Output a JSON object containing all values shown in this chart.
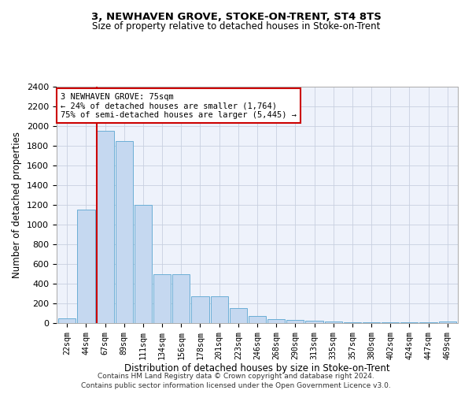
{
  "title": "3, NEWHAVEN GROVE, STOKE-ON-TRENT, ST4 8TS",
  "subtitle": "Size of property relative to detached houses in Stoke-on-Trent",
  "xlabel": "Distribution of detached houses by size in Stoke-on-Trent",
  "ylabel": "Number of detached properties",
  "footnote1": "Contains HM Land Registry data © Crown copyright and database right 2024.",
  "footnote2": "Contains public sector information licensed under the Open Government Licence v3.0.",
  "bar_labels": [
    "22sqm",
    "44sqm",
    "67sqm",
    "89sqm",
    "111sqm",
    "134sqm",
    "156sqm",
    "178sqm",
    "201sqm",
    "223sqm",
    "246sqm",
    "268sqm",
    "290sqm",
    "313sqm",
    "335sqm",
    "357sqm",
    "380sqm",
    "402sqm",
    "424sqm",
    "447sqm",
    "469sqm"
  ],
  "bar_values": [
    50,
    1150,
    1950,
    1850,
    1200,
    500,
    500,
    270,
    270,
    150,
    75,
    40,
    35,
    25,
    20,
    5,
    5,
    5,
    10,
    10,
    15
  ],
  "bar_color": "#c5d8f0",
  "bar_edge_color": "#6baed6",
  "ylim": [
    0,
    2400
  ],
  "yticks": [
    0,
    200,
    400,
    600,
    800,
    1000,
    1200,
    1400,
    1600,
    1800,
    2000,
    2200,
    2400
  ],
  "red_line_index": 2,
  "annotation_line1": "3 NEWHAVEN GROVE: 75sqm",
  "annotation_line2": "← 24% of detached houses are smaller (1,764)",
  "annotation_line3": "75% of semi-detached houses are larger (5,445) →",
  "annotation_box_color": "white",
  "annotation_box_edge": "#cc0000",
  "red_line_color": "#cc0000",
  "grid_color": "#c8d0e0",
  "background_color": "#eef2fb",
  "title_fontsize": 9.5,
  "subtitle_fontsize": 8.5
}
